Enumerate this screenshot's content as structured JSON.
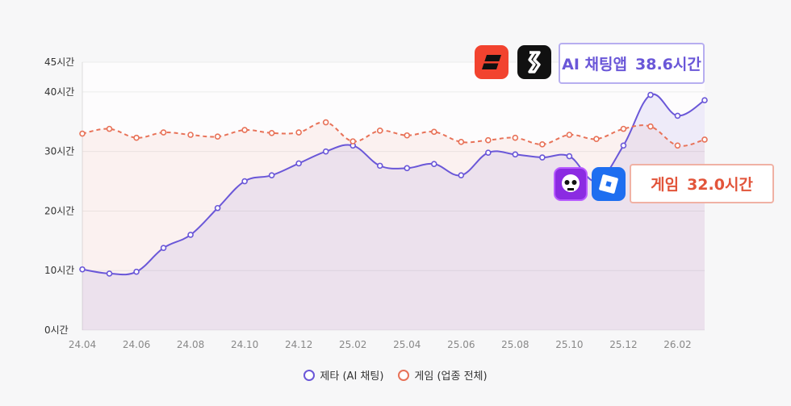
{
  "chart_data": {
    "type": "line",
    "title": "",
    "xlabel": "",
    "ylabel": "",
    "ylim": [
      0,
      45
    ],
    "yticks": [
      {
        "value": 0,
        "label": "0시간"
      },
      {
        "value": 10,
        "label": "10시간"
      },
      {
        "value": 20,
        "label": "20시간"
      },
      {
        "value": 30,
        "label": "30시간"
      },
      {
        "value": 40,
        "label": "40시간"
      },
      {
        "value": 45,
        "label": "45시간"
      }
    ],
    "x": [
      "24.04",
      "24.05",
      "24.06",
      "24.07",
      "24.08",
      "24.09",
      "24.10",
      "24.11",
      "24.12",
      "25.01",
      "25.02",
      "25.03",
      "25.04",
      "25.05",
      "25.06",
      "25.07",
      "25.08",
      "25.09",
      "25.10",
      "25.11",
      "25.12",
      "26.01",
      "26.02",
      "26.03"
    ],
    "xtick_labels": [
      "24.04",
      "",
      "24.06",
      "",
      "24.08",
      "",
      "24.10",
      "",
      "24.12",
      "",
      "25.02",
      "",
      "25.04",
      "",
      "25.06",
      "",
      "25.08",
      "",
      "25.10",
      "",
      "25.12",
      "",
      "26.02",
      ""
    ],
    "grid": true,
    "legend_position": "bottom",
    "series": [
      {
        "name": "제타 (AI 채팅)",
        "color": "#6a57d8",
        "style": "solid",
        "values": [
          10.2,
          9.5,
          9.8,
          13.8,
          16.0,
          20.5,
          25.0,
          26.0,
          28.0,
          30.0,
          31.0,
          27.6,
          27.2,
          27.9,
          26.0,
          29.8,
          29.5,
          29.0,
          29.2,
          25.0,
          31.0,
          39.5,
          36.0,
          38.6
        ]
      },
      {
        "name": "게임 (업종 전체)",
        "color": "#e87258",
        "style": "dashed",
        "values": [
          33.0,
          33.8,
          32.3,
          33.2,
          32.8,
          32.5,
          33.6,
          33.1,
          33.2,
          34.9,
          31.7,
          33.5,
          32.7,
          33.3,
          31.6,
          31.9,
          32.3,
          31.2,
          32.8,
          32.1,
          33.8,
          34.2,
          31.0,
          32.0
        ]
      }
    ]
  },
  "callouts": {
    "ai": {
      "label": "AI 채팅앱",
      "value": "38.6시간"
    },
    "game": {
      "label": "게임",
      "value": "32.0시간"
    }
  },
  "icons": {
    "zeta": "zeta-app-icon",
    "char": "character-ai-app-icon",
    "brawl": "brawl-stars-app-icon",
    "roblox": "roblox-app-icon"
  }
}
